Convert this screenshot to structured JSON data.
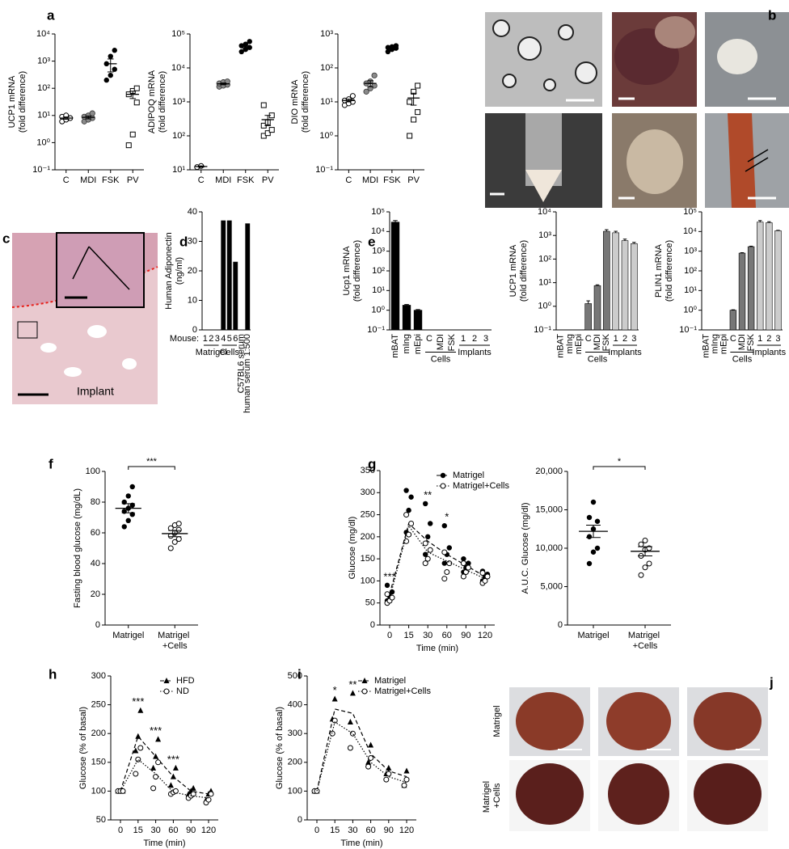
{
  "images": [
    {
      "panel": "b"
    },
    {
      "panel": "c",
      "label": "Implant"
    },
    {
      "panel": "j",
      "row_labels": [
        "Matrigel",
        "Matrigel +Cells"
      ]
    }
  ],
  "chart_data": [
    {
      "type": "dotplot",
      "panel": "a",
      "scale": "log",
      "ylabel": [
        "UCP1 mRNA",
        "(fold difference)"
      ],
      "categories": [
        "C",
        "MDI",
        "FSK",
        "PV"
      ],
      "markers": [
        "open-circle",
        "gray-circle",
        "filled-circle",
        "open-square"
      ],
      "points": [
        [
          6,
          7,
          8,
          9,
          10,
          8
        ],
        [
          6,
          7,
          8,
          9,
          10,
          12
        ],
        [
          200,
          300,
          500,
          800,
          1500,
          2500
        ],
        [
          0.8,
          2,
          30,
          60,
          80,
          100
        ]
      ],
      "mean": [
        8,
        8.5,
        800,
        60
      ],
      "sem": [
        0.8,
        1,
        400,
        18
      ],
      "ylim": [
        0.1,
        10000
      ],
      "yticks": [
        {
          "value": 0.1,
          "label": "10⁻¹"
        },
        {
          "value": 1,
          "label": "10⁰"
        },
        {
          "value": 10,
          "label": "10¹"
        },
        {
          "value": 100,
          "label": "10²"
        },
        {
          "value": 1000,
          "label": "10³"
        },
        {
          "value": 10000,
          "label": "10⁴"
        }
      ]
    },
    {
      "type": "dotplot",
      "scale": "log",
      "ylabel": [
        "ADIPOQ mRNA",
        "(fold difference)"
      ],
      "categories": [
        "C",
        "MDI",
        "FSK",
        "PV"
      ],
      "markers": [
        "open-circle",
        "gray-circle",
        "filled-circle",
        "open-square"
      ],
      "points": [
        [
          12,
          13
        ],
        [
          2800,
          3000,
          3200,
          3500,
          3800,
          4000
        ],
        [
          30000,
          35000,
          40000,
          45000,
          50000,
          60000
        ],
        [
          100,
          120,
          150,
          200,
          250,
          400,
          800
        ]
      ],
      "mean": [
        12.5,
        3400,
        42000,
        300
      ],
      "sem": [
        0.5,
        200,
        4000,
        100
      ],
      "ylim": [
        10,
        100000
      ],
      "yticks": [
        {
          "value": 10,
          "label": "10¹"
        },
        {
          "value": 100,
          "label": "10²"
        },
        {
          "value": 1000,
          "label": "10³"
        },
        {
          "value": 10000,
          "label": "10⁴"
        },
        {
          "value": 100000,
          "label": "10⁵"
        }
      ]
    },
    {
      "type": "dotplot",
      "scale": "log",
      "ylabel": [
        "DIO mRNA",
        "(fold difference)"
      ],
      "categories": [
        "C",
        "MDI",
        "FSK",
        "PV"
      ],
      "markers": [
        "open-circle",
        "gray-circle",
        "filled-circle",
        "open-square"
      ],
      "points": [
        [
          8,
          9,
          10,
          11,
          12,
          15
        ],
        [
          20,
          25,
          30,
          35,
          40,
          60
        ],
        [
          300,
          350,
          380,
          400,
          420,
          450
        ],
        [
          1,
          3,
          5,
          10,
          20,
          30
        ]
      ],
      "mean": [
        11,
        35,
        380,
        13
      ],
      "sem": [
        1,
        7,
        20,
        5
      ],
      "ylim": [
        0.1,
        1000
      ],
      "yticks": [
        {
          "value": 0.1,
          "label": "10⁻¹"
        },
        {
          "value": 1,
          "label": "10⁰"
        },
        {
          "value": 10,
          "label": "10¹"
        },
        {
          "value": 100,
          "label": "10²"
        },
        {
          "value": 1000,
          "label": "10³"
        }
      ]
    },
    {
      "type": "bar",
      "panel": "d",
      "scale": "linear",
      "ylabel": [
        "Human Adiponectin",
        "(ng/ml)"
      ],
      "category_title": "Mouse:",
      "categories": [
        "1",
        "2",
        "3",
        "4",
        "5",
        "6",
        "C57BL6 serum",
        "human serum 1:500"
      ],
      "values": [
        0,
        0,
        0,
        37,
        37,
        23,
        0,
        36
      ],
      "color": "#000000",
      "groups": [
        {
          "label": "Matrigel",
          "categories": [
            "1",
            "2",
            "3"
          ]
        },
        {
          "label": "Cells",
          "categories": [
            "4",
            "5",
            "6"
          ]
        }
      ],
      "ylim": [
        0,
        40
      ],
      "yticks": [
        0,
        10,
        20,
        30,
        40
      ]
    },
    {
      "type": "bar",
      "panel": "e",
      "scale": "log",
      "ylabel": [
        "Ucp1 mRNA",
        "(fold difference)"
      ],
      "categories": [
        "mBAT",
        "mIng",
        "mEpi",
        "C",
        "MDI",
        "FSK",
        "1",
        "2",
        "3"
      ],
      "values": [
        30000,
        1.8,
        1.0,
        null,
        null,
        null,
        null,
        null,
        null
      ],
      "errors": [
        6000,
        0.15,
        0.08,
        null,
        null,
        null,
        null,
        null,
        null
      ],
      "color": "#000000",
      "groups": [
        {
          "label": "Cells",
          "categories": [
            "C",
            "MDI",
            "FSK"
          ]
        },
        {
          "label": "Implants",
          "categories": [
            "1",
            "2",
            "3"
          ]
        }
      ],
      "ylim": [
        0.1,
        100000
      ],
      "yticks": [
        {
          "value": 0.1,
          "label": "10⁻¹"
        },
        {
          "value": 1,
          "label": "10⁰"
        },
        {
          "value": 10,
          "label": "10¹"
        },
        {
          "value": 100,
          "label": "10²"
        },
        {
          "value": 1000,
          "label": "10³"
        },
        {
          "value": 10000,
          "label": "10⁴"
        },
        {
          "value": 100000,
          "label": "10⁵"
        }
      ]
    },
    {
      "type": "bar",
      "scale": "log",
      "ylabel": [
        "UCP1 mRNA",
        "(fold difference)"
      ],
      "categories": [
        "mBAT",
        "mIng",
        "mEpi",
        "C",
        "MDI",
        "FSK",
        "1",
        "2",
        "3"
      ],
      "values": [
        null,
        null,
        null,
        1.3,
        7.5,
        1500,
        1300,
        600,
        450
      ],
      "errors": [
        null,
        null,
        null,
        0.4,
        0.6,
        250,
        200,
        100,
        60
      ],
      "colors": [
        null,
        null,
        null,
        "#777777",
        "#777777",
        "#777777",
        "#cccccc",
        "#cccccc",
        "#cccccc"
      ],
      "groups": [
        {
          "label": "Cells",
          "categories": [
            "C",
            "MDI",
            "FSK"
          ]
        },
        {
          "label": "Implants",
          "categories": [
            "1",
            "2",
            "3"
          ]
        }
      ],
      "ylim": [
        0.1,
        10000
      ],
      "yticks": [
        {
          "value": 0.1,
          "label": "10⁻¹"
        },
        {
          "value": 1,
          "label": "10⁰"
        },
        {
          "value": 10,
          "label": "10¹"
        },
        {
          "value": 100,
          "label": "10²"
        },
        {
          "value": 1000,
          "label": "10³"
        },
        {
          "value": 10000,
          "label": "10⁴"
        }
      ]
    },
    {
      "type": "bar",
      "scale": "log",
      "ylabel": [
        "PLIN1 mRNA",
        "(fold difference)"
      ],
      "categories": [
        "mBAT",
        "mIng",
        "mEpi",
        "C",
        "MDI",
        "FSK",
        "1",
        "2",
        "3"
      ],
      "values": [
        null,
        null,
        null,
        1.0,
        800,
        1700,
        30000,
        28000,
        11000
      ],
      "errors": [
        null,
        null,
        null,
        0.05,
        40,
        100,
        6000,
        3500,
        500
      ],
      "colors": [
        null,
        null,
        null,
        "#777777",
        "#777777",
        "#777777",
        "#cccccc",
        "#cccccc",
        "#cccccc"
      ],
      "groups": [
        {
          "label": "Cells",
          "categories": [
            "C",
            "MDI",
            "FSK"
          ]
        },
        {
          "label": "Implants",
          "categories": [
            "1",
            "2",
            "3"
          ]
        }
      ],
      "ylim": [
        0.1,
        100000
      ],
      "yticks": [
        {
          "value": 0.1,
          "label": "10⁻¹"
        },
        {
          "value": 1,
          "label": "10⁰"
        },
        {
          "value": 10,
          "label": "10¹"
        },
        {
          "value": 100,
          "label": "10²"
        },
        {
          "value": 1000,
          "label": "10³"
        },
        {
          "value": 10000,
          "label": "10⁴"
        },
        {
          "value": 100000,
          "label": "10⁵"
        }
      ]
    },
    {
      "type": "dotplot",
      "panel": "f",
      "scale": "linear",
      "ylabel": [
        "Fasting blood glucose (mg/dL)"
      ],
      "categories": [
        "Matrigel",
        "Matrigel +Cells"
      ],
      "markers": [
        "filled-circle",
        "open-circle"
      ],
      "points": [
        [
          64,
          68,
          72,
          74,
          76,
          78,
          80,
          84,
          90
        ],
        [
          50,
          54,
          56,
          58,
          60,
          62,
          63,
          65,
          66
        ]
      ],
      "mean": [
        76,
        59.5
      ],
      "sem": [
        3,
        2
      ],
      "significance": "***",
      "ylim": [
        0,
        100
      ],
      "yticks": [
        0,
        20,
        40,
        60,
        80,
        100
      ]
    },
    {
      "type": "line",
      "panel": "g",
      "scale": "linear",
      "ylabel": [
        "Glucose (mg/dl)"
      ],
      "xlabel": "Time (min)",
      "categories": [
        "0",
        "15",
        "30",
        "60",
        "90",
        "120"
      ],
      "series": [
        {
          "name": "Matrigel",
          "marker": "filled-circle",
          "dash": "dashed",
          "color": "#000000",
          "values": [
            70,
            230,
            190,
            160,
            135,
            110
          ],
          "points": [
            [
              55,
              65,
              75,
              90
            ],
            [
              210,
              260,
              290,
              305
            ],
            [
              160,
              200,
              230,
              275
            ],
            [
              140,
              160,
              175,
              225
            ],
            [
              120,
              130,
              140,
              150
            ],
            [
              100,
              108,
              115,
              122
            ]
          ]
        },
        {
          "name": "Matrigel+Cells",
          "marker": "open-circle",
          "dash": "dotted",
          "color": "#000000",
          "values": [
            60,
            225,
            165,
            145,
            125,
            105
          ],
          "points": [
            [
              50,
              55,
              62,
              70
            ],
            [
              190,
              205,
              230,
              250
            ],
            [
              140,
              150,
              170,
              185
            ],
            [
              105,
              120,
              140,
              165
            ],
            [
              110,
              120,
              130,
              140
            ],
            [
              95,
              100,
              110,
              118
            ]
          ]
        }
      ],
      "annotations": [
        {
          "text": "***",
          "at": "0"
        },
        {
          "text": "**",
          "at": "30"
        },
        {
          "text": "*",
          "at": "60"
        }
      ],
      "legend": "top-right",
      "ylim": [
        0,
        350
      ],
      "yticks": [
        0,
        50,
        100,
        150,
        200,
        250,
        300,
        350
      ]
    },
    {
      "type": "dotplot",
      "scale": "linear",
      "ylabel": [
        "A.U.C. Glucose (mg/dl)"
      ],
      "categories": [
        "Matrigel",
        "Matrigel +Cells"
      ],
      "markers": [
        "filled-circle",
        "open-circle"
      ],
      "points": [
        [
          8000,
          9500,
          10000,
          11500,
          12500,
          13500,
          14000,
          16000
        ],
        [
          6500,
          7500,
          8000,
          9000,
          9800,
          10000,
          10500,
          11000
        ]
      ],
      "mean": [
        12200,
        9600
      ],
      "sem": [
        800,
        600
      ],
      "significance": "*",
      "ylim": [
        0,
        20000
      ],
      "yticks": [
        0,
        {
          "value": 5000,
          "label": "5,000"
        },
        {
          "value": 10000,
          "label": "10,000"
        },
        {
          "value": 15000,
          "label": "15,000"
        },
        {
          "value": 20000,
          "label": "20,000"
        }
      ]
    },
    {
      "type": "line",
      "panel": "h",
      "scale": "linear",
      "ylabel": [
        "Glucose (% of basal)"
      ],
      "xlabel": "Time (min)",
      "categories": [
        "0",
        "15",
        "30",
        "60",
        "90",
        "120"
      ],
      "series": [
        {
          "name": "HFD",
          "marker": "filled-triangle",
          "dash": "dashed",
          "color": "#000000",
          "values": [
            100,
            195,
            160,
            125,
            100,
            95
          ],
          "points": [
            [
              100,
              100,
              100
            ],
            [
              170,
              195,
              240
            ],
            [
              140,
              160,
              190
            ],
            [
              110,
              125,
              140
            ],
            [
              95,
              100,
              105
            ],
            [
              85,
              95,
              100
            ]
          ]
        },
        {
          "name": "ND",
          "marker": "open-circle",
          "dash": "dotted",
          "color": "#000000",
          "values": [
            100,
            155,
            130,
            98,
            92,
            88
          ],
          "points": [
            [
              100,
              100,
              100
            ],
            [
              130,
              155,
              175
            ],
            [
              105,
              125,
              150
            ],
            [
              95,
              98,
              100
            ],
            [
              88,
              92,
              95
            ],
            [
              80,
              85,
              95
            ]
          ]
        }
      ],
      "annotations": [
        {
          "text": "***",
          "at": "15"
        },
        {
          "text": "***",
          "at": "30"
        },
        {
          "text": "***",
          "at": "60"
        }
      ],
      "legend": "top-right",
      "ylim": [
        50,
        300
      ],
      "yticks": [
        50,
        100,
        150,
        200,
        250,
        300
      ]
    },
    {
      "type": "line",
      "panel": "i",
      "scale": "linear",
      "ylabel": [
        "Glucose (% of basal)"
      ],
      "xlabel": "Time (min)",
      "categories": [
        "0",
        "15",
        "30",
        "60",
        "90",
        "120"
      ],
      "series": [
        {
          "name": "Matrigel",
          "marker": "filled-triangle",
          "dash": "dashed",
          "color": "#000000",
          "values": [
            100,
            385,
            370,
            230,
            170,
            150
          ],
          "points": [
            [
              100,
              100
            ],
            [
              350,
              420
            ],
            [
              340,
              440
            ],
            [
              200,
              260
            ],
            [
              160,
              180
            ],
            [
              120,
              170
            ]
          ]
        },
        {
          "name": "Matrigel+Cells",
          "marker": "open-circle",
          "dash": "dotted",
          "color": "#000000",
          "values": [
            100,
            340,
            300,
            200,
            150,
            130
          ],
          "points": [
            [
              100,
              100
            ],
            [
              300,
              345
            ],
            [
              250,
              300
            ],
            [
              185,
              215
            ],
            [
              140,
              160
            ],
            [
              120,
              140
            ]
          ]
        }
      ],
      "annotations": [
        {
          "text": "*",
          "at": "15"
        },
        {
          "text": "**",
          "at": "30"
        }
      ],
      "legend": "top-right",
      "ylim": [
        0,
        500
      ],
      "yticks": [
        0,
        100,
        200,
        300,
        400,
        500
      ]
    }
  ]
}
